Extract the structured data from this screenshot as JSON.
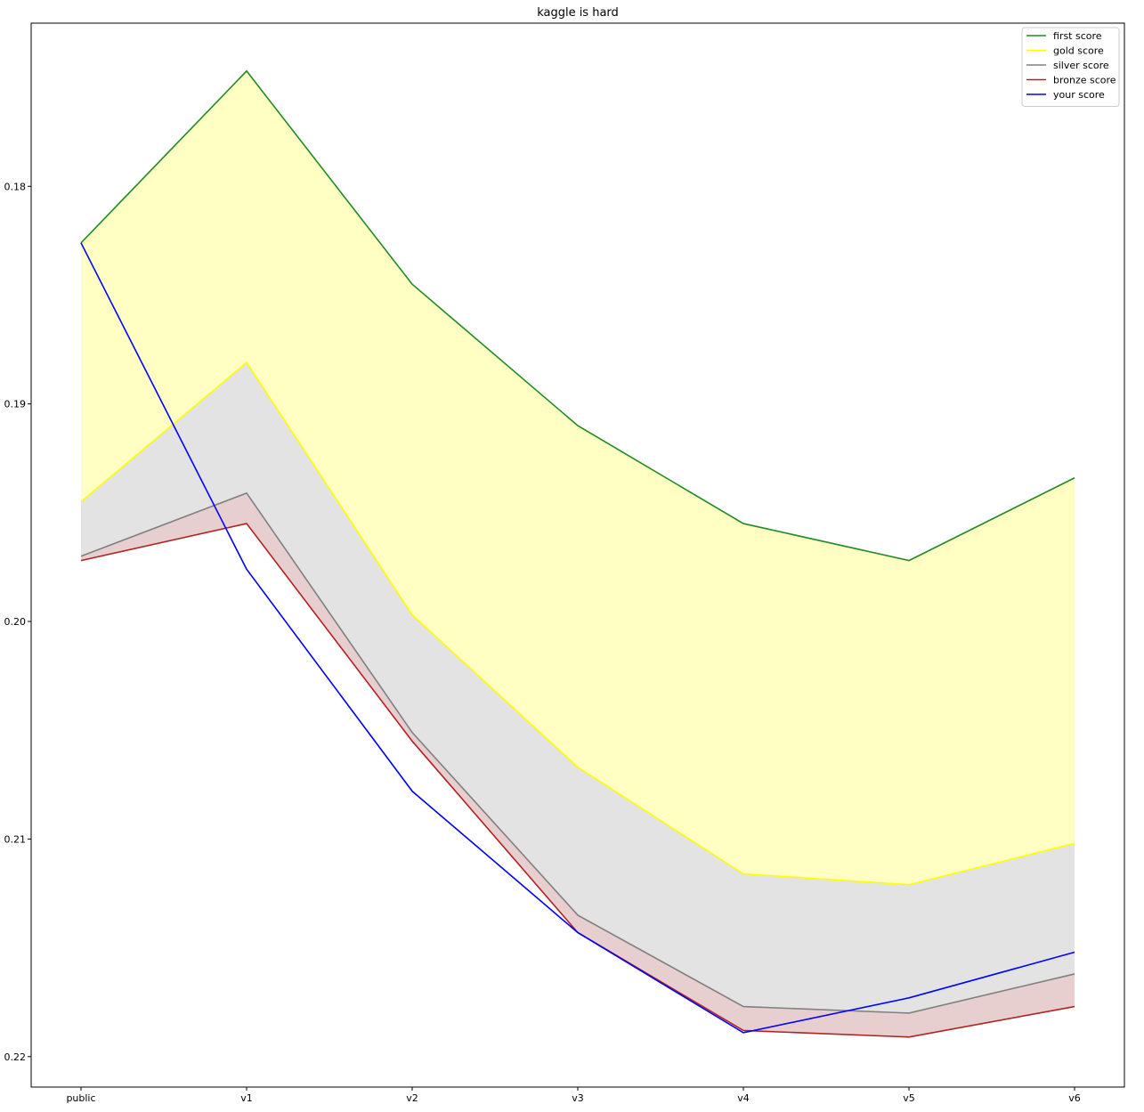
{
  "chart_data": {
    "type": "line",
    "title": "kaggle is hard",
    "xlabel": "",
    "ylabel": "",
    "categories": [
      "public",
      "v1",
      "v2",
      "v3",
      "v4",
      "v5",
      "v6"
    ],
    "y_ticks": [
      "0.18",
      "0.19",
      "0.20",
      "0.21",
      "0.22"
    ],
    "y_tick_values": [
      0.18,
      0.19,
      0.2,
      0.21,
      0.22
    ],
    "ylim": [
      0.2214,
      0.1725
    ],
    "y_inverted": true,
    "grid": false,
    "legend_position": "top-right",
    "series": [
      {
        "name": "first score",
        "color": "#228b22",
        "values": [
          0.1826,
          0.1747,
          0.1845,
          0.191,
          0.1955,
          0.1972,
          0.1934
        ]
      },
      {
        "name": "gold score",
        "color": "#ffff00",
        "values": [
          0.1945,
          0.1881,
          0.1997,
          0.2067,
          0.2116,
          0.2121,
          0.2102
        ]
      },
      {
        "name": "silver score",
        "color": "#808080",
        "values": [
          0.197,
          0.1941,
          0.2051,
          0.2135,
          0.2177,
          0.218,
          0.2162
        ]
      },
      {
        "name": "bronze score",
        "color": "#b22222",
        "values": [
          0.1972,
          0.1955,
          0.2055,
          0.2143,
          0.2188,
          0.2191,
          0.2177
        ]
      },
      {
        "name": "your score",
        "color": "#0000ff",
        "values": [
          0.1826,
          0.1976,
          0.2078,
          0.2143,
          0.2189,
          0.2173,
          0.2152
        ]
      }
    ],
    "fills": [
      {
        "between": [
          "first score",
          "gold score"
        ],
        "color": "#ffffc4"
      },
      {
        "between": [
          "gold score",
          "silver score"
        ],
        "color": "#e3e3e3"
      },
      {
        "between": [
          "silver score",
          "bronze score"
        ],
        "color": "#e8cfcf"
      }
    ]
  }
}
